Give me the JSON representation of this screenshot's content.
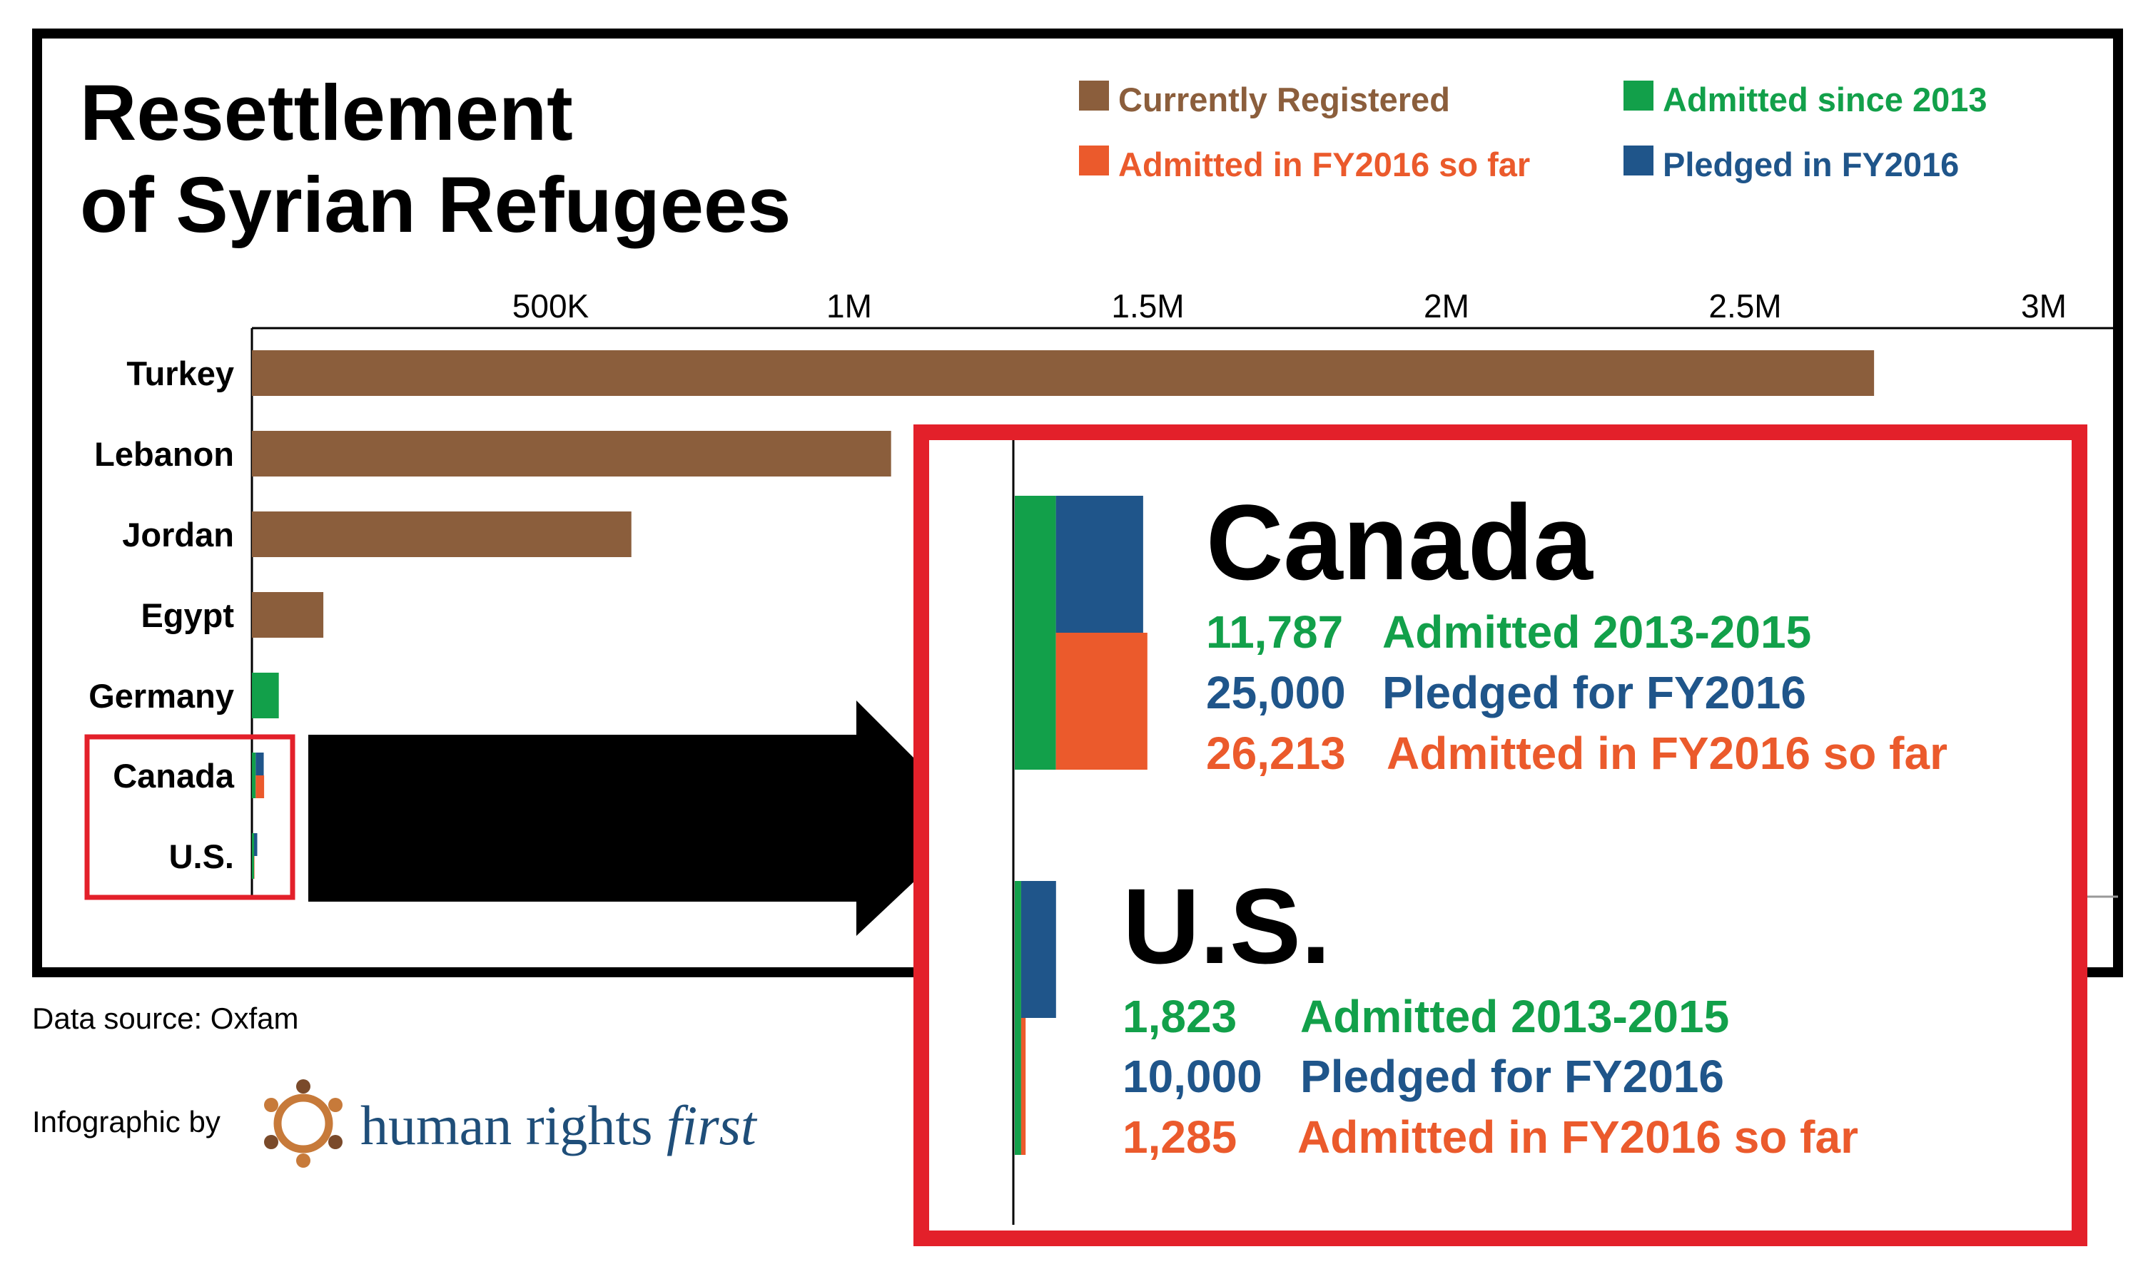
{
  "title_line1": "Resettlement",
  "title_line2": "of Syrian Refugees",
  "colors": {
    "registered": "#8B5E3C",
    "admitted_2013": "#12A04A",
    "admitted_fy2016": "#EB5A2C",
    "pledged": "#1F558A",
    "highlight": "#E3202A"
  },
  "legend": [
    {
      "label": "Currently Registered",
      "color": "#8B5E3C"
    },
    {
      "label": "Admitted since 2013",
      "color": "#12A04A"
    },
    {
      "label": "Admitted in FY2016 so far",
      "color": "#EB5A2C"
    },
    {
      "label": "Pledged in FY2016",
      "color": "#1F558A"
    }
  ],
  "chart_data": {
    "type": "bar",
    "orientation": "horizontal",
    "title": "Resettlement of Syrian Refugees",
    "xlim": [
      0,
      3000000
    ],
    "ticks": [
      500000,
      1000000,
      1500000,
      2000000,
      2500000,
      3000000
    ],
    "tick_labels": [
      "500K",
      "1M",
      "1.5M",
      "2M",
      "2.5M",
      "3M"
    ],
    "categories": [
      "Turkey",
      "Lebanon",
      "Jordan",
      "Egypt",
      "Germany",
      "Canada",
      "U.S."
    ],
    "series": [
      {
        "name": "Currently Registered",
        "color": "#8B5E3C",
        "values": [
          2715800,
          1070100,
          635300,
          119600,
          null,
          null,
          null
        ]
      },
      {
        "name": "Admitted since 2013",
        "color": "#12A04A",
        "values": [
          null,
          null,
          null,
          null,
          45000,
          11787,
          1823
        ]
      },
      {
        "name": "Pledged in FY2016",
        "color": "#1F558A",
        "values": [
          null,
          null,
          null,
          null,
          null,
          25000,
          10000
        ]
      },
      {
        "name": "Admitted in FY2016 so far",
        "color": "#EB5A2C",
        "values": [
          null,
          null,
          null,
          null,
          null,
          26213,
          1285
        ]
      }
    ]
  },
  "callouts": [
    {
      "country": "Canada",
      "lines": [
        {
          "value": "11,787",
          "label": "Admitted 2013-2015",
          "color": "#12A04A"
        },
        {
          "value": "25,000",
          "label": "Pledged for FY2016",
          "color": "#1F558A"
        },
        {
          "value": "26,213",
          "label": "Admitted in FY2016 so far",
          "color": "#EB5A2C"
        }
      ]
    },
    {
      "country": "U.S.",
      "lines": [
        {
          "value": "1,823",
          "label": "Admitted 2013-2015",
          "color": "#12A04A"
        },
        {
          "value": "10,000",
          "label": "Pledged for FY2016",
          "color": "#1F558A"
        },
        {
          "value": "1,285",
          "label": "Admitted in FY2016 so far",
          "color": "#EB5A2C"
        }
      ]
    }
  ],
  "footer": {
    "source": "Data source: Oxfam",
    "credit": "Infographic by",
    "brand": "human rights",
    "brand_italic": "first"
  }
}
